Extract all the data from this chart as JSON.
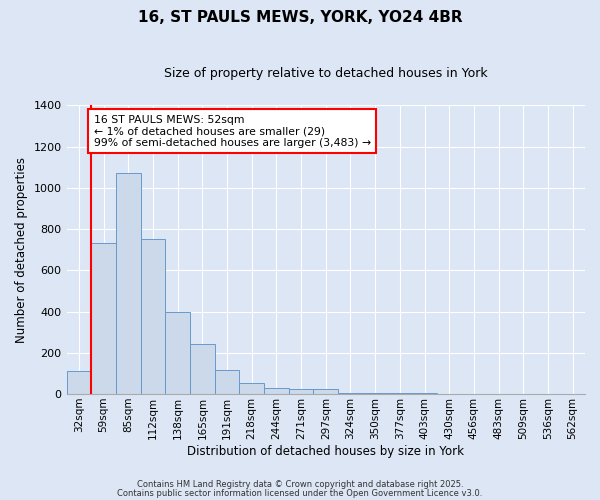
{
  "title": "16, ST PAULS MEWS, YORK, YO24 4BR",
  "subtitle": "Size of property relative to detached houses in York",
  "xlabel": "Distribution of detached houses by size in York",
  "ylabel": "Number of detached properties",
  "bar_color": "#ccd9ea",
  "bar_edge_color": "#6699cc",
  "bg_color": "#dce6f5",
  "grid_color": "#ffffff",
  "categories": [
    "32sqm",
    "59sqm",
    "85sqm",
    "112sqm",
    "138sqm",
    "165sqm",
    "191sqm",
    "218sqm",
    "244sqm",
    "271sqm",
    "297sqm",
    "324sqm",
    "350sqm",
    "377sqm",
    "403sqm",
    "430sqm",
    "456sqm",
    "483sqm",
    "509sqm",
    "536sqm",
    "562sqm"
  ],
  "values": [
    110,
    730,
    1070,
    750,
    400,
    245,
    115,
    55,
    30,
    25,
    25,
    5,
    5,
    3,
    3,
    2,
    1,
    1,
    1,
    1,
    1
  ],
  "annotation_text": "16 ST PAULS MEWS: 52sqm\n← 1% of detached houses are smaller (29)\n99% of semi-detached houses are larger (3,483) →",
  "vline_x": 0.5,
  "ylim": [
    0,
    1400
  ],
  "yticks": [
    0,
    200,
    400,
    600,
    800,
    1000,
    1200,
    1400
  ],
  "footnote1": "Contains HM Land Registry data © Crown copyright and database right 2025.",
  "footnote2": "Contains public sector information licensed under the Open Government Licence v3.0."
}
